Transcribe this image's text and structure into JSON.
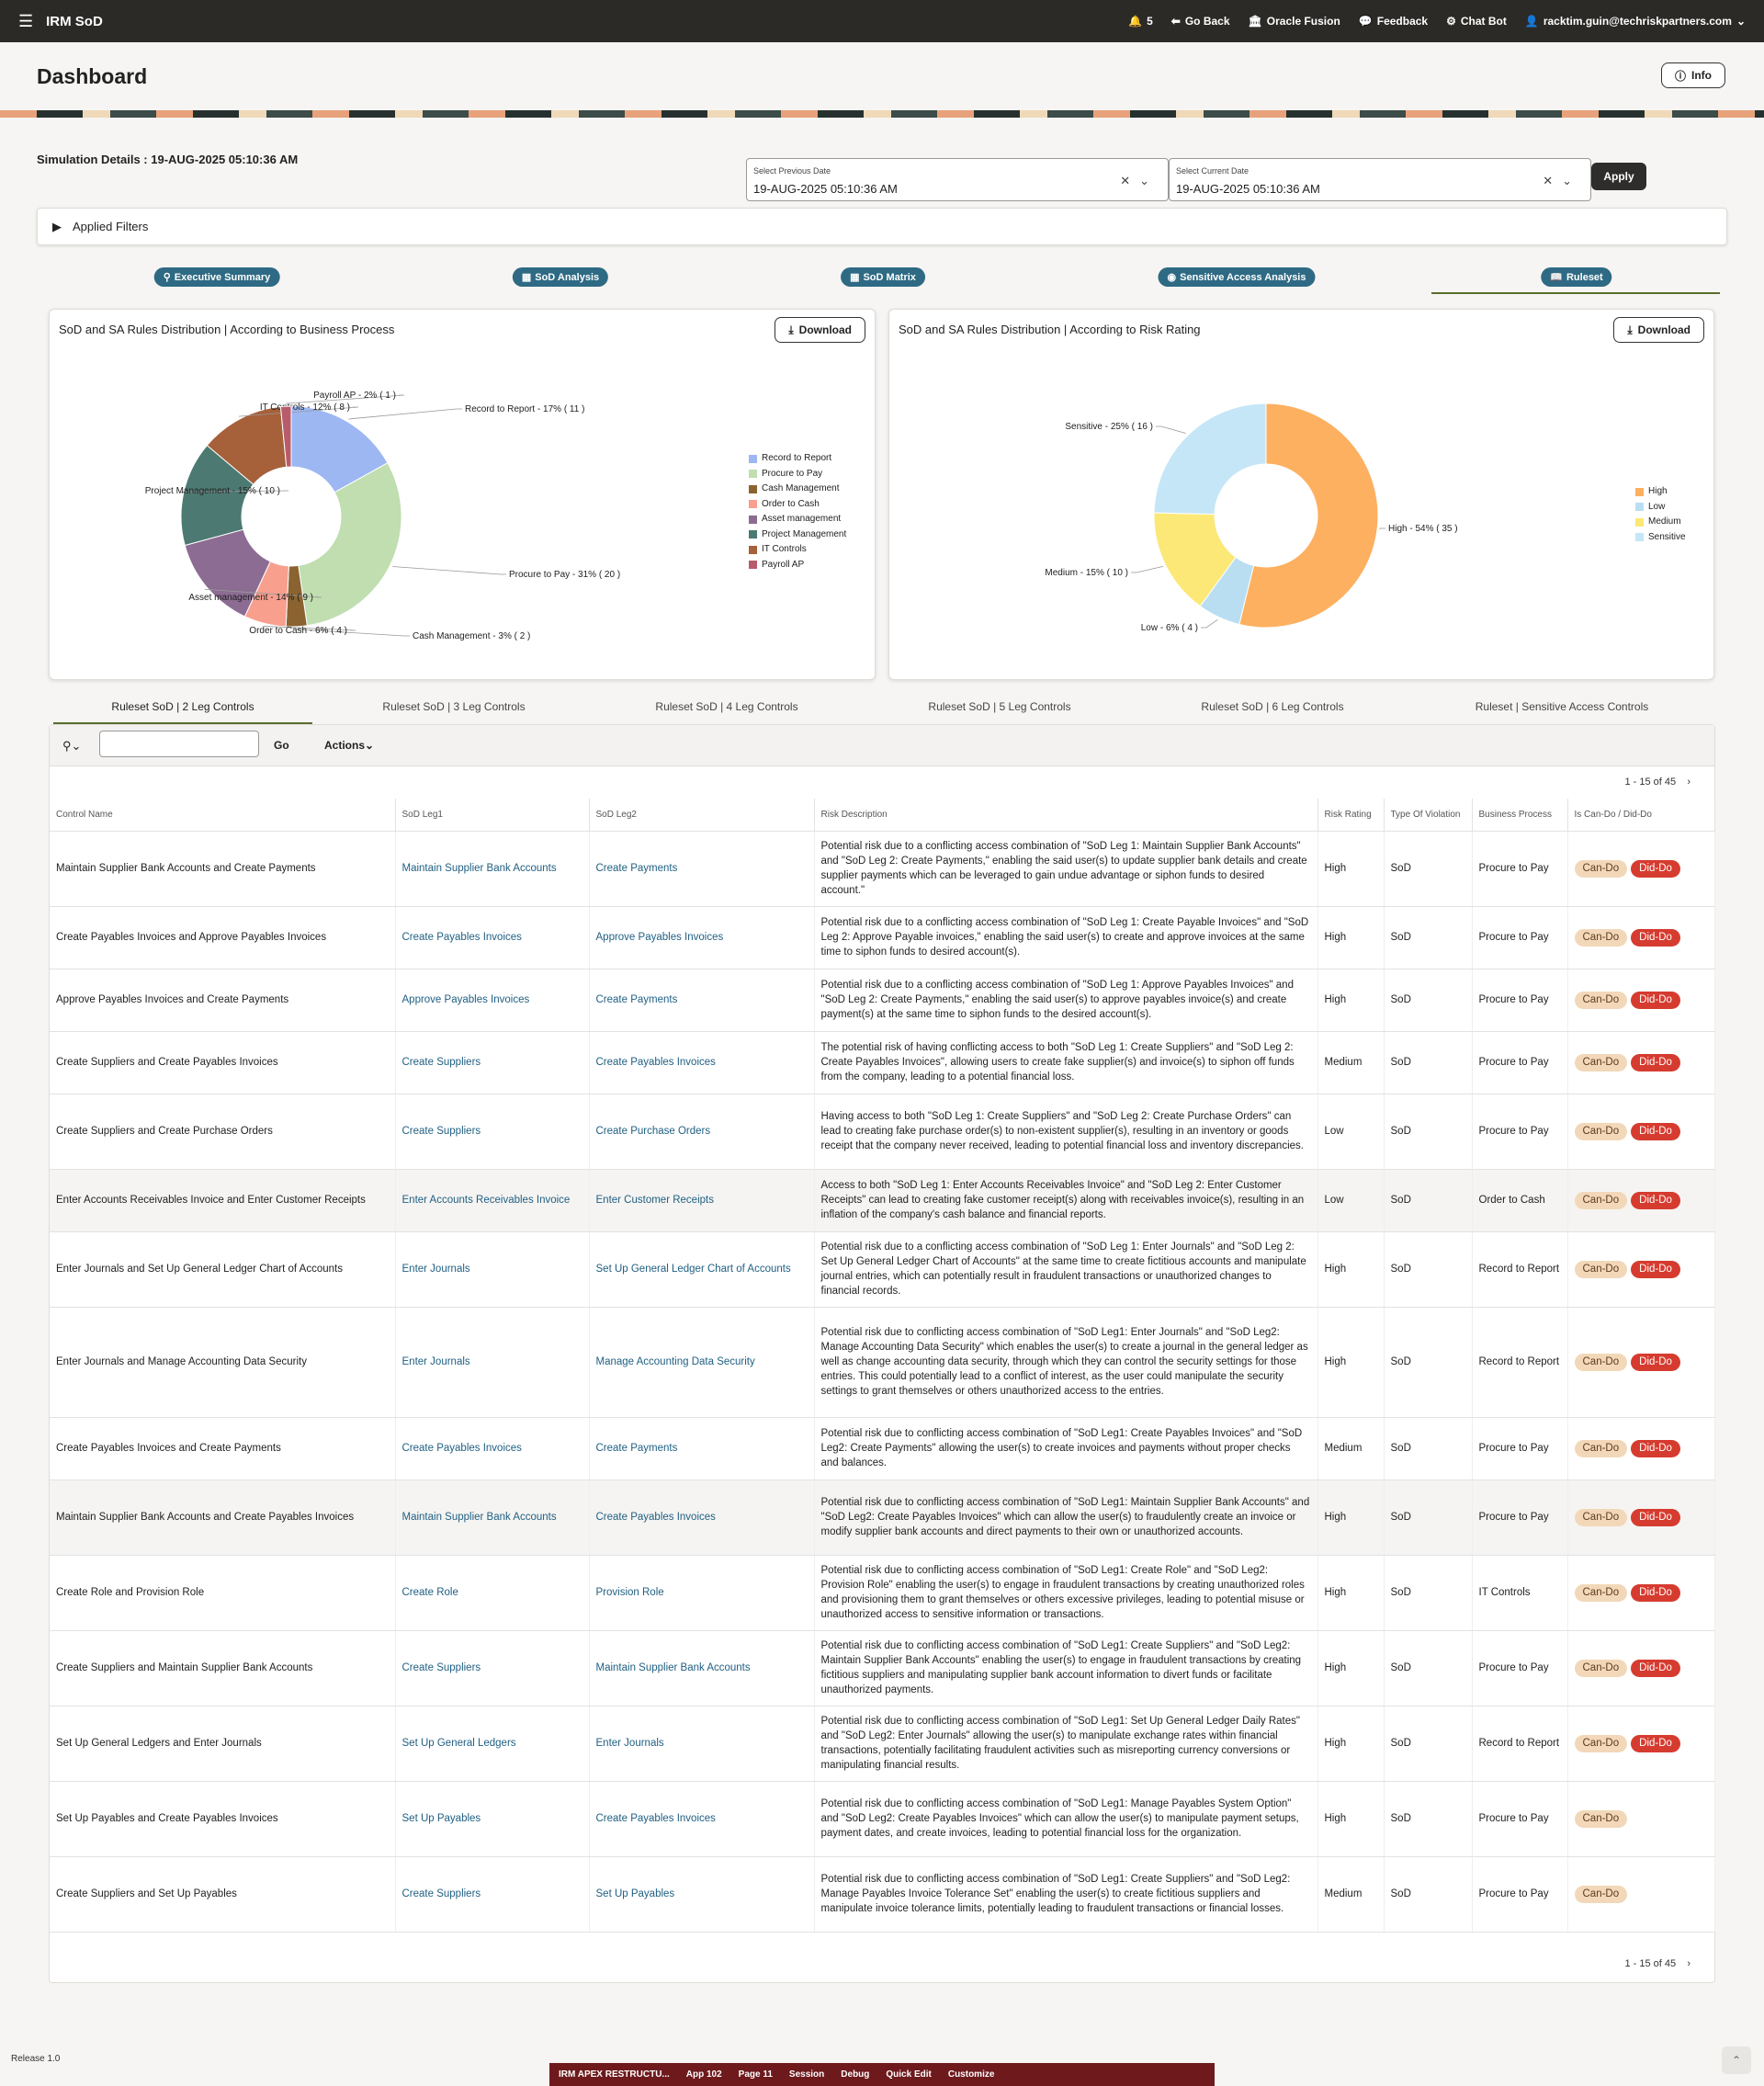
{
  "topbar": {
    "app_title": "IRM SoD",
    "notif_count": "5",
    "go_back": "Go Back",
    "oracle": "Oracle Fusion",
    "feedback": "Feedback",
    "chatbot": "Chat Bot",
    "user": "racktim.guin@techriskpartners.com"
  },
  "page": {
    "title": "Dashboard",
    "info": "Info",
    "simulation": "Simulation Details : 19-AUG-2025 05:10:36 AM"
  },
  "dates": {
    "prev_label": "Select Previous Date",
    "prev_value": "19-AUG-2025 05:10:36 AM",
    "curr_label": "Select Current Date",
    "curr_value": "19-AUG-2025 05:10:36 AM",
    "apply": "Apply"
  },
  "filters": {
    "label": "Applied Filters"
  },
  "nav": [
    "Executive Summary",
    "SoD Analysis",
    "SoD Matrix",
    "Sensitive Access Analysis",
    "Ruleset"
  ],
  "chart1": {
    "title": "SoD and SA Rules Distribution | According to Business Process",
    "download": "Download"
  },
  "chart2": {
    "title": "SoD and SA Rules Distribution | According to Risk Rating",
    "download": "Download"
  },
  "chart_data": [
    {
      "type": "pie",
      "title": "SoD and SA Rules Distribution | According to Business Process",
      "series": [
        {
          "name": "Record to Report",
          "value": 11,
          "label": "Record to Report - 17% ( 11 )",
          "color": "#9db7f3"
        },
        {
          "name": "Procure to Pay",
          "value": 20,
          "label": "Procure to Pay - 31% ( 20 )",
          "color": "#c0deb0"
        },
        {
          "name": "Cash Management",
          "value": 2,
          "label": "Cash Management - 3% ( 2 )",
          "color": "#8a6330"
        },
        {
          "name": "Order to Cash",
          "value": 4,
          "label": "Order to Cash - 6% ( 4 )",
          "color": "#f89f8e"
        },
        {
          "name": "Asset management",
          "value": 9,
          "label": "Asset management - 14% ( 9 )",
          "color": "#8c6c92"
        },
        {
          "name": "Project Management",
          "value": 10,
          "label": "Project Management - 15% ( 10 )",
          "color": "#4c7a72"
        },
        {
          "name": "IT Controls",
          "value": 8,
          "label": "IT Controls - 12% ( 8 )",
          "color": "#a6603a"
        },
        {
          "name": "Payroll AP",
          "value": 1,
          "label": "Payroll AP - 2% ( 1 )",
          "color": "#b85c6c"
        }
      ]
    },
    {
      "type": "pie",
      "title": "SoD and SA Rules Distribution | According to Risk Rating",
      "series": [
        {
          "name": "High",
          "value": 35,
          "label": "High - 54% ( 35 )",
          "color": "#fdb060"
        },
        {
          "name": "Low",
          "value": 4,
          "label": "Low - 6% ( 4 )",
          "color": "#b9def2"
        },
        {
          "name": "Medium",
          "value": 10,
          "label": "Medium - 15% ( 10 )",
          "color": "#fbe876"
        },
        {
          "name": "Sensitive",
          "value": 16,
          "label": "Sensitive - 25% ( 16 )",
          "color": "#c5e6f7"
        }
      ]
    }
  ],
  "tabs": [
    "Ruleset SoD | 2 Leg Controls",
    "Ruleset SoD | 3 Leg Controls",
    "Ruleset SoD | 4 Leg Controls",
    "Ruleset SoD | 5 Leg Controls",
    "Ruleset SoD | 6 Leg Controls",
    "Ruleset | Sensitive Access Controls"
  ],
  "toolbar": {
    "go": "Go",
    "actions": "Actions"
  },
  "pagination": "1 - 15 of 45",
  "columns": [
    "Control Name",
    "SoD Leg1",
    "SoD Leg2",
    "Risk Description",
    "Risk Rating",
    "Type Of Violation",
    "Business Process",
    "Is Can-Do / Did-Do"
  ],
  "badge_labels": {
    "can": "Can-Do",
    "did": "Did-Do"
  },
  "rows": [
    {
      "control": "Maintain Supplier Bank Accounts and Create Payments",
      "leg1": "Maintain Supplier Bank Accounts",
      "leg2": "Create Payments",
      "desc": "Potential risk due to a conflicting access combination of  \"SoD Leg 1: Maintain Supplier Bank Accounts\" and \"SoD Leg 2: Create Payments,\" enabling the said user(s) to update supplier bank details and create supplier payments which can be leveraged to gain undue advantage or siphon funds to desired account.\"",
      "rating": "High",
      "type": "SoD",
      "bp": "Procure to Pay",
      "did": true
    },
    {
      "control": "Create Payables Invoices and Approve Payables Invoices",
      "leg1": "Create Payables Invoices",
      "leg2": "Approve Payables Invoices",
      "desc": "Potential risk due to a conflicting access combination of \"SoD Leg 1: Create Payable Invoices\" and \"SoD Leg 2: Approve Payable invoices,\" enabling the said user(s) to create and approve invoices at the same time to siphon funds to desired account(s).",
      "rating": "High",
      "type": "SoD",
      "bp": "Procure to Pay",
      "did": true
    },
    {
      "control": "Approve Payables Invoices and Create Payments",
      "leg1": "Approve Payables Invoices",
      "leg2": "Create Payments",
      "desc": "Potential risk due to a conflicting access combination of \"SoD Leg 1: Approve Payables Invoices\" and \"SoD Leg 2: Create Payments,\" enabling the said user(s) to approve payables invoice(s) and create payment(s) at the same time to siphon funds to the desired account(s).",
      "rating": "High",
      "type": "SoD",
      "bp": "Procure to Pay",
      "did": true
    },
    {
      "control": "Create Suppliers and Create Payables Invoices",
      "leg1": "Create Suppliers",
      "leg2": "Create Payables Invoices",
      "desc": "The potential risk of having conflicting access to both \"SoD Leg 1: Create Suppliers\" and \"SoD Leg 2: Create Payables Invoices\", allowing users to create fake supplier(s) and invoice(s) to siphon off funds from the company, leading to a potential financial loss.",
      "rating": "Medium",
      "type": "SoD",
      "bp": "Procure to Pay",
      "did": true
    },
    {
      "control": "Create Suppliers and Create Purchase Orders",
      "leg1": "Create Suppliers",
      "leg2": "Create Purchase Orders",
      "desc": "Having access to both \"SoD Leg 1: Create Suppliers\" and \"SoD Leg 2: Create Purchase Orders\" can lead to creating fake purchase order(s) to non-existent supplier(s), resulting in an inventory or goods receipt that the company never received, leading to potential financial loss and inventory discrepancies.",
      "rating": "Low",
      "type": "SoD",
      "bp": "Procure to Pay",
      "did": true
    },
    {
      "control": "Enter Accounts Receivables Invoice and Enter Customer Receipts",
      "leg1": "Enter Accounts Receivables Invoice",
      "leg2": "Enter Customer Receipts",
      "desc": "Access to both \"SoD Leg 1: Enter Accounts Receivables Invoice\" and \"SoD Leg 2: Enter Customer Receipts\" can lead to creating fake customer receipt(s) along with receivables invoice(s), resulting in an inflation of the company's cash balance and financial reports.",
      "rating": "Low",
      "type": "SoD",
      "bp": "Order to Cash",
      "did": true
    },
    {
      "control": "Enter Journals and Set Up General Ledger Chart of Accounts",
      "leg1": "Enter Journals",
      "leg2": "Set Up General Ledger Chart of Accounts",
      "desc": "Potential risk due to a conflicting access combination of \"SoD Leg 1: Enter Journals\" and \"SoD Leg 2: Set Up General Ledger Chart of Accounts\" at the same time to create fictitious accounts and manipulate journal entries, which can potentially result in fraudulent transactions or unauthorized changes to financial records.",
      "rating": "High",
      "type": "SoD",
      "bp": "Record to Report",
      "did": true
    },
    {
      "control": "Enter Journals and Manage Accounting Data Security",
      "leg1": "Enter Journals",
      "leg2": "Manage Accounting Data Security",
      "desc": "Potential risk due to conflicting access combination of \"SoD Leg1: Enter Journals\" and \"SoD Leg2: Manage Accounting Data Security\" which enables the user(s) to create a journal in the general ledger as well as change accounting data security, through which they can control the security settings for those entries. This could potentially lead to a conflict of interest, as the user could manipulate the security settings to grant themselves or others unauthorized access to the entries.",
      "rating": "High",
      "type": "SoD",
      "bp": "Record to Report",
      "did": true
    },
    {
      "control": "Create Payables Invoices and Create Payments",
      "leg1": "Create Payables Invoices",
      "leg2": "Create Payments",
      "desc": "Potential risk due to conflicting access combination of \"SoD Leg1: Create Payables Invoices\" and \"SoD Leg2: Create Payments\" allowing the user(s) to create invoices and payments without proper checks and balances.",
      "rating": "Medium",
      "type": "SoD",
      "bp": "Procure to Pay",
      "did": true
    },
    {
      "control": "Maintain Supplier Bank Accounts and Create Payables Invoices",
      "leg1": "Maintain Supplier Bank Accounts",
      "leg2": "Create Payables Invoices",
      "desc": "Potential risk due to conflicting access combination of \"SoD Leg1: Maintain Supplier Bank Accounts\" and \"SoD Leg2: Create Payables Invoices\" which can allow the user(s) to fraudulently create an invoice or modify supplier bank accounts and direct payments to their own or unauthorized accounts.",
      "rating": "High",
      "type": "SoD",
      "bp": "Procure to Pay",
      "did": true
    },
    {
      "control": "Create Role and Provision Role",
      "leg1": "Create Role",
      "leg2": "Provision Role",
      "desc": "Potential risk due to conflicting access combination of \"SoD Leg1: Create Role\" and \"SoD Leg2: Provision Role\" enabling the user(s) to engage in fraudulent transactions by creating unauthorized roles and provisioning them to grant themselves or others excessive privileges, leading to potential misuse or unauthorized access to sensitive information or transactions.",
      "rating": "High",
      "type": "SoD",
      "bp": "IT Controls",
      "did": true
    },
    {
      "control": "Create Suppliers and Maintain Supplier Bank Accounts",
      "leg1": "Create Suppliers",
      "leg2": "Maintain Supplier Bank Accounts",
      "desc": "Potential risk due to conflicting access combination of \"SoD Leg1: Create Suppliers\" and \"SoD Leg2: Maintain Supplier Bank Accounts\" enabling the user(s) to engage in fraudulent transactions by creating fictitious suppliers and manipulating supplier bank account information to divert funds or facilitate unauthorized payments.",
      "rating": "High",
      "type": "SoD",
      "bp": "Procure to Pay",
      "did": true
    },
    {
      "control": "Set Up General Ledgers and Enter Journals",
      "leg1": "Set Up General Ledgers",
      "leg2": "Enter Journals",
      "desc": "Potential risk due to conflicting access combination of \"SoD Leg1: Set Up General Ledger Daily Rates\" and \"SoD Leg2: Enter Journals\" allowing the user(s) to manipulate exchange rates within financial transactions, potentially facilitating fraudulent activities such as misreporting currency conversions or manipulating financial results.",
      "rating": "High",
      "type": "SoD",
      "bp": "Record to Report",
      "did": true
    },
    {
      "control": "Set Up Payables and Create Payables Invoices",
      "leg1": "Set Up Payables",
      "leg2": "Create Payables Invoices",
      "desc": "Potential risk due to conflicting access combination of \"SoD Leg1: Manage Payables System Option\" and \"SoD Leg2: Create Payables Invoices\" which can allow the user(s) to manipulate payment setups, payment dates, and create invoices, leading to potential financial loss for the organization.",
      "rating": "High",
      "type": "SoD",
      "bp": "Procure to Pay",
      "did": false
    },
    {
      "control": "Create Suppliers and Set Up Payables",
      "leg1": "Create Suppliers",
      "leg2": "Set Up Payables",
      "desc": "Potential risk due to conflicting access combination of \"SoD Leg1: Create Suppliers\" and \"SoD Leg2: Manage Payables Invoice Tolerance Set\" enabling the user(s) to create fictitious suppliers and manipulate invoice tolerance limits, potentially leading to fraudulent transactions or financial losses.",
      "rating": "Medium",
      "type": "SoD",
      "bp": "Procure to Pay",
      "did": false
    }
  ],
  "footer": {
    "release": "Release 1.0",
    "devbar": [
      "IRM APEX RESTRUCTU...",
      "App 102",
      "Page 11",
      "Session",
      "Debug",
      "Quick Edit",
      "Customize"
    ]
  }
}
